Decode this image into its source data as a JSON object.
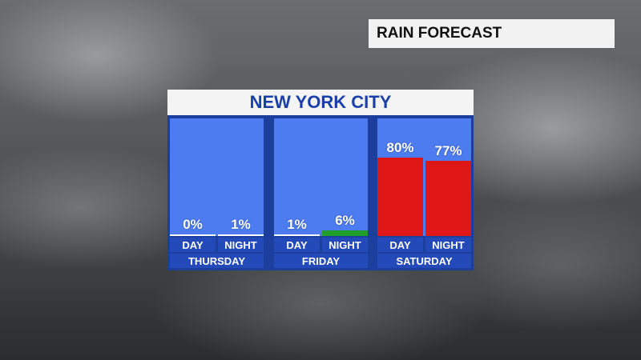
{
  "header": {
    "label": "RAIN FORECAST"
  },
  "chart_data": {
    "type": "bar",
    "title": "NEW YORK CITY",
    "days": [
      "THURSDAY",
      "FRIDAY",
      "SATURDAY"
    ],
    "periods": [
      "DAY",
      "NIGHT"
    ],
    "values": [
      [
        0,
        1
      ],
      [
        1,
        6
      ],
      [
        80,
        77
      ]
    ],
    "value_labels": [
      [
        "0%",
        "1%"
      ],
      [
        "1%",
        "6%"
      ],
      [
        "80%",
        "77%"
      ]
    ],
    "ylim": [
      0,
      100
    ],
    "colors": {
      "low": "#ffffff",
      "moderate": "#1f9e2a",
      "high": "#e01717",
      "panel": "#4d7cf0",
      "frame": "#1c3f9e"
    }
  }
}
